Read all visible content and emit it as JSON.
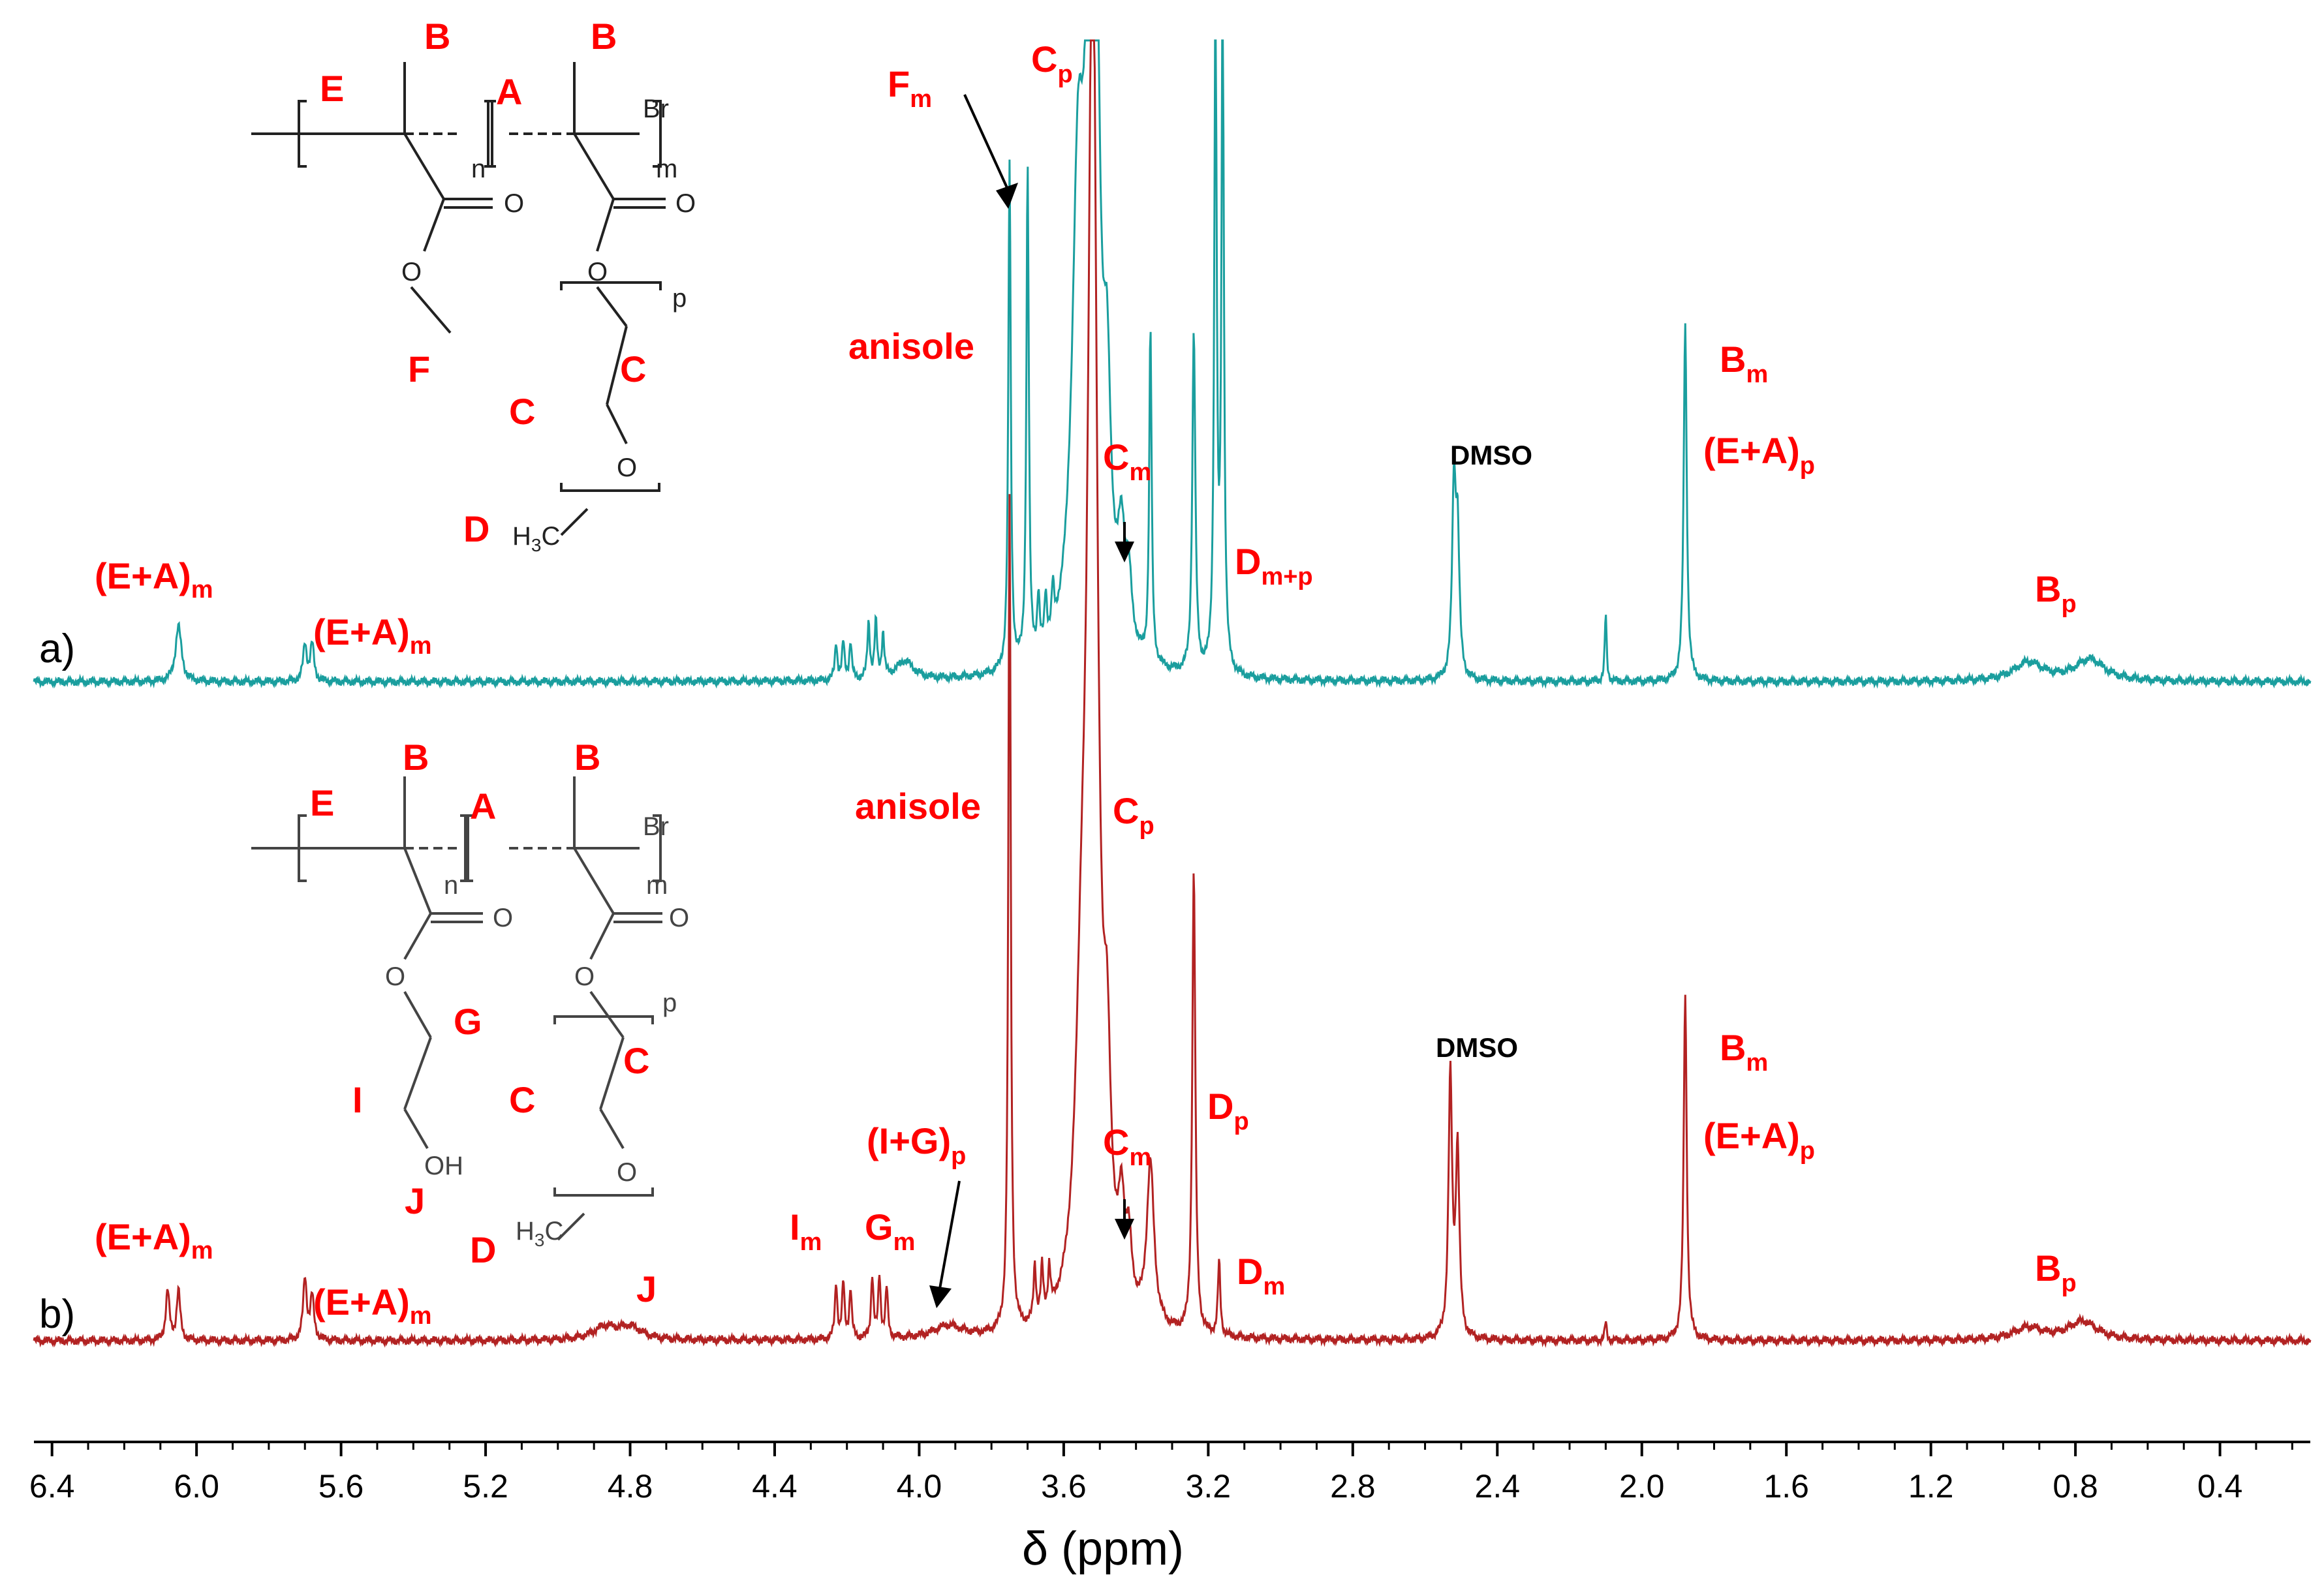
{
  "chart_data": {
    "type": "line",
    "title": "",
    "xlabel": "δ (ppm)",
    "xlim": [
      6.45,
      0.15
    ],
    "ticks": [
      "6.4",
      "6.0",
      "5.6",
      "5.2",
      "4.8",
      "4.4",
      "4.0",
      "3.6",
      "3.2",
      "2.8",
      "2.4",
      "2.0",
      "1.6",
      "1.2",
      "0.8",
      "0.4"
    ],
    "tick_values": [
      6.4,
      6.0,
      5.6,
      5.2,
      4.8,
      4.4,
      4.0,
      3.6,
      3.2,
      2.8,
      2.4,
      2.0,
      1.6,
      1.2,
      0.8,
      0.4
    ],
    "grid": false,
    "series": [
      {
        "trace_label": "a)",
        "color": "#1a9e9e",
        "peaks": [
          {
            "x": 6.05,
            "h": 0.09,
            "w": 0.01
          },
          {
            "x": 5.7,
            "h": 0.06,
            "w": 0.006
          },
          {
            "x": 5.68,
            "h": 0.06,
            "w": 0.006
          },
          {
            "x": 4.23,
            "h": 0.06,
            "w": 0.004
          },
          {
            "x": 4.21,
            "h": 0.06,
            "w": 0.004
          },
          {
            "x": 4.19,
            "h": 0.06,
            "w": 0.004
          },
          {
            "x": 4.14,
            "h": 0.09,
            "w": 0.004
          },
          {
            "x": 4.12,
            "h": 0.09,
            "w": 0.004
          },
          {
            "x": 4.1,
            "h": 0.07,
            "w": 0.004
          },
          {
            "x": 4.04,
            "h": 0.03,
            "w": 0.03
          },
          {
            "x": 3.75,
            "h": 0.82,
            "w": 0.004
          },
          {
            "x": 3.7,
            "h": 0.8,
            "w": 0.004
          },
          {
            "x": 3.67,
            "h": 0.09,
            "w": 0.004
          },
          {
            "x": 3.65,
            "h": 0.08,
            "w": 0.004
          },
          {
            "x": 3.63,
            "h": 0.07,
            "w": 0.004
          },
          {
            "x": 3.56,
            "h": 0.7,
            "w": 0.02
          },
          {
            "x": 3.52,
            "h": 2.0,
            "w": 0.015
          },
          {
            "x": 3.48,
            "h": 0.32,
            "w": 0.012
          },
          {
            "x": 3.44,
            "h": 0.16,
            "w": 0.012
          },
          {
            "x": 3.42,
            "h": 0.1,
            "w": 0.01
          },
          {
            "x": 3.36,
            "h": 0.54,
            "w": 0.004
          },
          {
            "x": 3.24,
            "h": 0.55,
            "w": 0.005
          },
          {
            "x": 3.18,
            "h": 1.1,
            "w": 0.004
          },
          {
            "x": 3.16,
            "h": 1.1,
            "w": 0.004
          },
          {
            "x": 2.52,
            "h": 0.3,
            "w": 0.006
          },
          {
            "x": 2.51,
            "h": 0.22,
            "w": 0.006
          },
          {
            "x": 2.1,
            "h": 0.11,
            "w": 0.003
          },
          {
            "x": 1.88,
            "h": 0.58,
            "w": 0.005
          },
          {
            "x": 0.93,
            "h": 0.03,
            "w": 0.05
          },
          {
            "x": 0.76,
            "h": 0.035,
            "w": 0.05
          }
        ]
      },
      {
        "trace_label": "b)",
        "color": "#b22222",
        "peaks": [
          {
            "x": 6.08,
            "h": 0.08,
            "w": 0.006
          },
          {
            "x": 6.05,
            "h": 0.08,
            "w": 0.006
          },
          {
            "x": 5.7,
            "h": 0.1,
            "w": 0.006
          },
          {
            "x": 5.68,
            "h": 0.07,
            "w": 0.006
          },
          {
            "x": 4.87,
            "h": 0.02,
            "w": 0.04
          },
          {
            "x": 4.8,
            "h": 0.02,
            "w": 0.04
          },
          {
            "x": 4.23,
            "h": 0.09,
            "w": 0.004
          },
          {
            "x": 4.21,
            "h": 0.09,
            "w": 0.004
          },
          {
            "x": 4.19,
            "h": 0.08,
            "w": 0.004
          },
          {
            "x": 4.13,
            "h": 0.1,
            "w": 0.004
          },
          {
            "x": 4.11,
            "h": 0.1,
            "w": 0.004
          },
          {
            "x": 4.09,
            "h": 0.08,
            "w": 0.004
          },
          {
            "x": 3.92,
            "h": 0.02,
            "w": 0.05
          },
          {
            "x": 3.75,
            "h": 1.35,
            "w": 0.004
          },
          {
            "x": 3.68,
            "h": 0.09,
            "w": 0.004
          },
          {
            "x": 3.66,
            "h": 0.08,
            "w": 0.004
          },
          {
            "x": 3.64,
            "h": 0.07,
            "w": 0.004
          },
          {
            "x": 3.55,
            "h": 0.4,
            "w": 0.02
          },
          {
            "x": 3.52,
            "h": 2.2,
            "w": 0.015
          },
          {
            "x": 3.48,
            "h": 0.3,
            "w": 0.012
          },
          {
            "x": 3.44,
            "h": 0.14,
            "w": 0.01
          },
          {
            "x": 3.42,
            "h": 0.1,
            "w": 0.01
          },
          {
            "x": 3.36,
            "h": 0.26,
            "w": 0.012
          },
          {
            "x": 3.24,
            "h": 0.75,
            "w": 0.005
          },
          {
            "x": 3.17,
            "h": 0.12,
            "w": 0.004
          },
          {
            "x": 2.53,
            "h": 0.42,
            "w": 0.006
          },
          {
            "x": 2.51,
            "h": 0.3,
            "w": 0.006
          },
          {
            "x": 2.1,
            "h": 0.03,
            "w": 0.003
          },
          {
            "x": 1.88,
            "h": 0.56,
            "w": 0.005
          },
          {
            "x": 0.93,
            "h": 0.02,
            "w": 0.05
          },
          {
            "x": 0.78,
            "h": 0.03,
            "w": 0.05
          }
        ]
      }
    ]
  },
  "annotations": {
    "a": {
      "em_left": "(E+A)",
      "em_left_sub": "m",
      "em_right": "(E+A)",
      "em_right_sub": "m",
      "fm": "F",
      "fm_sub": "m",
      "cp": "C",
      "cp_sub": "p",
      "anisole": "anisole",
      "cm": "C",
      "cm_sub": "m",
      "dmp": "D",
      "dmp_sub": "m+p",
      "dmso": "DMSO",
      "bm": "B",
      "bm_sub": "m",
      "eap": "(E+A)",
      "eap_sub": "p",
      "bp": "B",
      "bp_sub": "p"
    },
    "b": {
      "em_left": "(E+A)",
      "em_left_sub": "m",
      "em_right": "(E+A)",
      "em_right_sub": "m",
      "j": "J",
      "im": "I",
      "im_sub": "m",
      "gm": "G",
      "gm_sub": "m",
      "igp": "(I+G)",
      "igp_sub": "p",
      "anisole": "anisole",
      "cp": "C",
      "cp_sub": "p",
      "cm": "C",
      "cm_sub": "m",
      "dp": "D",
      "dp_sub": "p",
      "dm": "D",
      "dm_sub": "m",
      "dmso": "DMSO",
      "bm": "B",
      "bm_sub": "m",
      "eap": "(E+A)",
      "eap_sub": "p",
      "bp": "B",
      "bp_sub": "p"
    }
  },
  "structures": {
    "a": {
      "E": "E",
      "B1": "B",
      "A": "A",
      "B2": "B",
      "Br": "Br",
      "n": "n",
      "m": "m",
      "p": "p",
      "O1": "O",
      "O2": "O",
      "O3": "O",
      "O4": "O",
      "O5": "O",
      "F": "F",
      "C1": "C",
      "C2": "C",
      "D": "D",
      "H3C": "H",
      "H3C_sub": "3",
      "H3C_end": "C"
    },
    "b": {
      "E": "E",
      "B1": "B",
      "A": "A",
      "B2": "B",
      "Br": "Br",
      "n": "n",
      "m": "m",
      "p": "p",
      "O1": "O",
      "O2": "O",
      "O3": "O",
      "O4": "O",
      "O5": "O",
      "OH": "OH",
      "G": "G",
      "I": "I",
      "J": "J",
      "C1": "C",
      "C2": "C",
      "D": "D",
      "H3C": "H",
      "H3C_sub": "3",
      "H3C_end": "C"
    }
  }
}
